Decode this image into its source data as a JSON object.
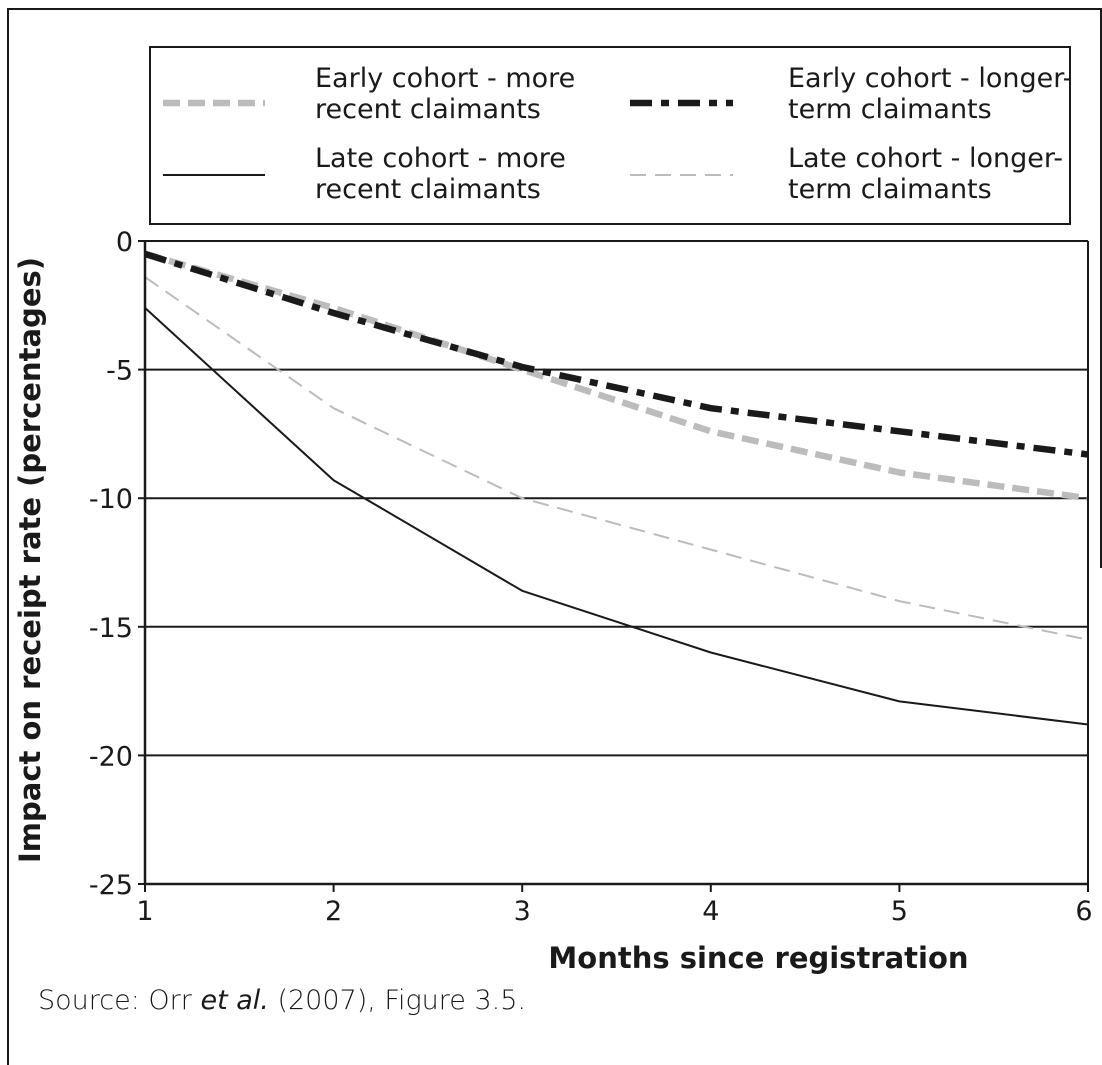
{
  "chart_data": {
    "type": "line",
    "title": "",
    "xlabel": "Months since registration",
    "ylabel": "Impact on receipt rate (percentages)",
    "x": [
      1,
      2,
      3,
      4,
      5,
      6
    ],
    "xticks": [
      "1",
      "2",
      "3",
      "4",
      "5",
      "6"
    ],
    "xlim": [
      1,
      6
    ],
    "ylim": [
      -25,
      0
    ],
    "yticks": [
      "0",
      "-5",
      "-10",
      "-15",
      "-20",
      "-25"
    ],
    "grid": "horizontal",
    "legend_position": "top",
    "series": [
      {
        "name": "Early cohort - more recent claimants",
        "name_lines": [
          "Early cohort - more",
          "recent claimants"
        ],
        "values": [
          -0.5,
          -2.6,
          -5.0,
          -7.4,
          -9.0,
          -10.0
        ],
        "color": "#bcbcbc",
        "style": "thick-dash"
      },
      {
        "name": "Early cohort - longer-term claimants",
        "name_lines": [
          "Early cohort - longer-",
          "term claimants"
        ],
        "values": [
          -0.5,
          -2.8,
          -4.9,
          -6.5,
          -7.4,
          -8.3
        ],
        "color": "#1a1a1a",
        "style": "thick-dash-dot"
      },
      {
        "name": "Late cohort - more recent claimants",
        "name_lines": [
          "Late cohort - more",
          "recent claimants"
        ],
        "values": [
          -2.6,
          -9.3,
          -13.6,
          -16.0,
          -17.9,
          -18.8
        ],
        "color": "#1a1a1a",
        "style": "solid"
      },
      {
        "name": "Late cohort - longer-term claimants",
        "name_lines": [
          "Late cohort - longer-",
          "term claimants"
        ],
        "values": [
          -1.4,
          -6.5,
          -10.0,
          -12.0,
          -14.0,
          -15.5
        ],
        "color": "#bcbcbc",
        "style": "thin-dash"
      }
    ]
  },
  "source": {
    "prefix": "Source: Orr ",
    "italic": "et al.",
    "suffix": " (2007), Figure 3.5."
  }
}
